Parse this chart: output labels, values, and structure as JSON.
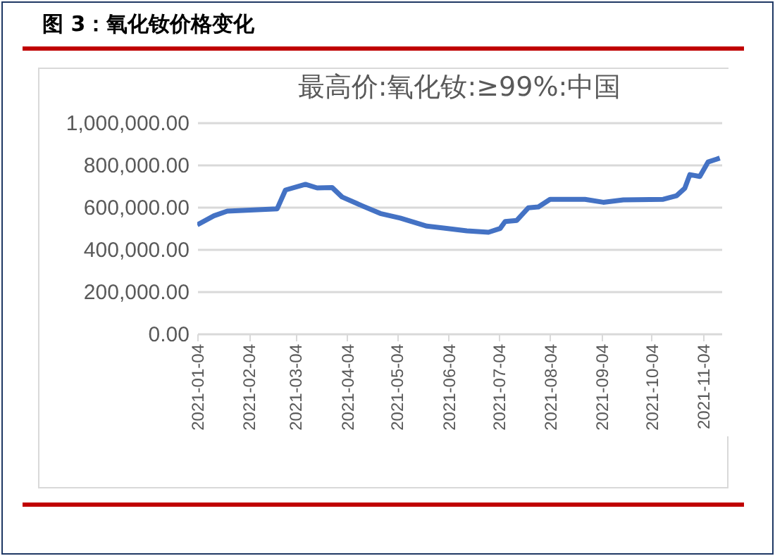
{
  "chart_data": {
    "type": "line",
    "title": "最高价:氧化钕:≥99%:中国",
    "subtitle": "图 3：氧化钕价格变化",
    "x": [
      "2021-01-04",
      "2021-01-14",
      "2021-01-22",
      "2021-02-21",
      "2021-02-26",
      "2021-03-10",
      "2021-03-17",
      "2021-03-26",
      "2021-04-01",
      "2021-04-14",
      "2021-04-24",
      "2021-05-06",
      "2021-05-22",
      "2021-06-01",
      "2021-06-15",
      "2021-06-28",
      "2021-07-05",
      "2021-07-08",
      "2021-07-15",
      "2021-07-22",
      "2021-07-28",
      "2021-08-04",
      "2021-08-25",
      "2021-09-05",
      "2021-09-17",
      "2021-10-11",
      "2021-10-19",
      "2021-10-24",
      "2021-10-27",
      "2021-11-02",
      "2021-11-07",
      "2021-11-14"
    ],
    "series": [
      {
        "color": "#4472c4",
        "values": [
          515000,
          558000,
          580000,
          591000,
          680000,
          707000,
          690000,
          692000,
          647000,
          602000,
          569000,
          547000,
          509000,
          500000,
          487000,
          480000,
          498000,
          531000,
          536000,
          596000,
          600000,
          636000,
          636000,
          622000,
          633000,
          636000,
          653000,
          689000,
          753000,
          744000,
          813000,
          831000
        ]
      }
    ],
    "xlim": [
      "2021-01-04",
      "2021-11-15"
    ],
    "xticks": [
      "2021-01-04",
      "2021-02-04",
      "2021-03-04",
      "2021-04-04",
      "2021-05-04",
      "2021-06-04",
      "2021-07-04",
      "2021-08-04",
      "2021-09-04",
      "2021-10-04",
      "2021-11-04"
    ],
    "ylim": [
      0,
      1000000
    ],
    "yticks": [
      {
        "value": 0,
        "label": "0.00"
      },
      {
        "value": 200000,
        "label": "200,000.00"
      },
      {
        "value": 400000,
        "label": "400,000.00"
      },
      {
        "value": 600000,
        "label": "600,000.00"
      },
      {
        "value": 800000,
        "label": "800,000.00"
      },
      {
        "value": 1000000,
        "label": "1,000,000.00"
      }
    ],
    "grid": "y",
    "legend": false,
    "marker": "none",
    "line_style": "solid"
  }
}
